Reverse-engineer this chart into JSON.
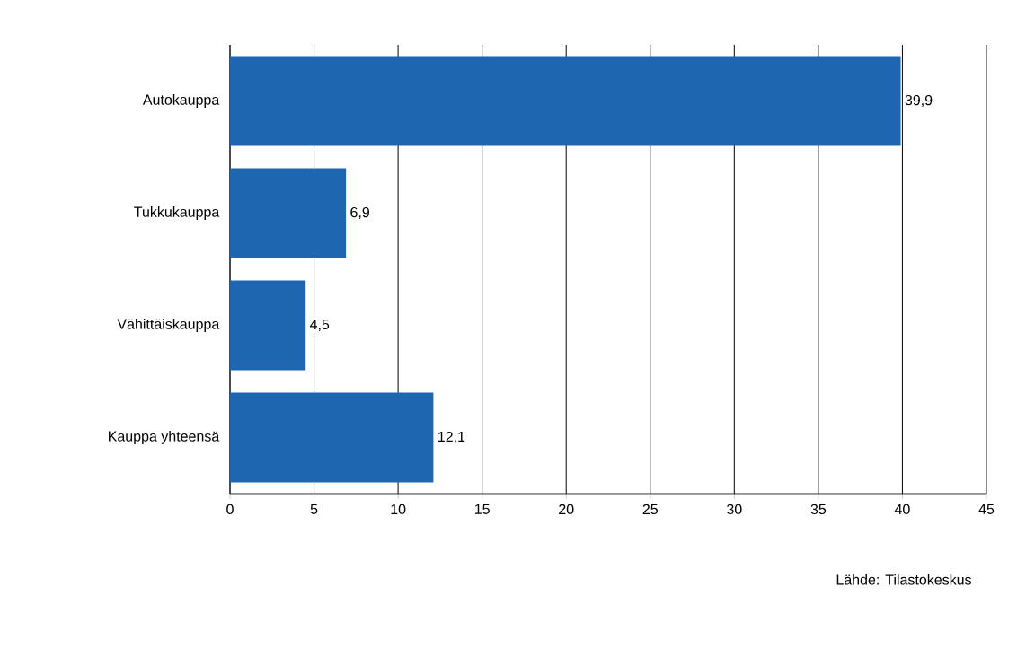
{
  "chart_data": {
    "type": "bar",
    "orientation": "horizontal",
    "categories": [
      "Autokauppa",
      "Tukkukauppa",
      "Vähittäiskauppa",
      "Kauppa yhteensä"
    ],
    "values": [
      39.9,
      6.9,
      4.5,
      12.1
    ],
    "value_labels": [
      "39,9",
      "6,9",
      "4,5",
      "12,1"
    ],
    "color": "#1f66b0",
    "xlim": [
      0,
      45
    ],
    "xticks": [
      0,
      5,
      10,
      15,
      20,
      25,
      30,
      35,
      40,
      45
    ],
    "grid": "x",
    "annotations": [
      "Lähde: Tilastokeskus"
    ]
  }
}
